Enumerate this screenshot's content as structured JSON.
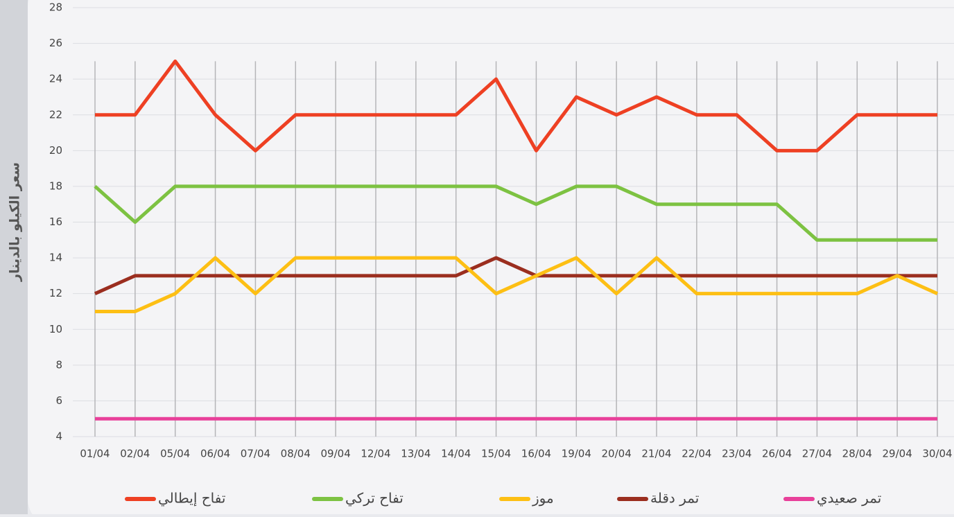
{
  "chart_data": {
    "type": "line",
    "y_label": "سعر الكيلو بالدينار",
    "categories": [
      "01/04",
      "02/04",
      "05/04",
      "06/04",
      "07/04",
      "08/04",
      "09/04",
      "12/04",
      "13/04",
      "14/04",
      "15/04",
      "16/04",
      "19/04",
      "20/04",
      "21/04",
      "22/04",
      "23/04",
      "26/04",
      "27/04",
      "28/04",
      "29/04",
      "30/04"
    ],
    "series": [
      {
        "name": "تفاح إيطالي",
        "color": "#ee4023",
        "values": [
          22,
          22,
          25,
          22,
          20,
          22,
          22,
          22,
          22,
          22,
          24,
          20,
          23,
          22,
          23,
          22,
          22,
          20,
          20,
          22,
          22,
          22
        ]
      },
      {
        "name": "تفاح تركي",
        "color": "#7dc242",
        "values": [
          18,
          16,
          18,
          18,
          18,
          18,
          18,
          18,
          18,
          18,
          18,
          17,
          18,
          18,
          17,
          17,
          17,
          17,
          15,
          15,
          15,
          15
        ]
      },
      {
        "name": "موز",
        "color": "#fdbf14",
        "values": [
          11,
          11,
          12,
          14,
          12,
          14,
          14,
          14,
          14,
          14,
          12,
          13,
          14,
          12,
          14,
          12,
          12,
          12,
          12,
          12,
          13,
          12
        ]
      },
      {
        "name": "تمر دقلة",
        "color": "#9b2e1f",
        "values": [
          12,
          13,
          13,
          13,
          13,
          13,
          13,
          13,
          13,
          13,
          14,
          13,
          13,
          13,
          13,
          13,
          13,
          13,
          13,
          13,
          13,
          13
        ]
      },
      {
        "name": "تمر صعيدي",
        "color": "#e8409a",
        "values": [
          5,
          5,
          5,
          5,
          5,
          5,
          5,
          5,
          5,
          5,
          5,
          5,
          5,
          5,
          5,
          5,
          5,
          5,
          5,
          5,
          5,
          5
        ]
      }
    ],
    "ylim": [
      4,
      28
    ],
    "yticks": [
      4,
      6,
      8,
      10,
      12,
      14,
      16,
      18,
      20,
      22,
      24,
      26,
      28
    ],
    "grid": true
  }
}
